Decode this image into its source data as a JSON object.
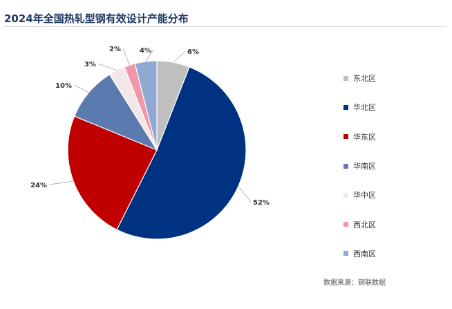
{
  "title": "2024年全国热轧型钢有效设计产能分布",
  "source": "数据来源：钢联数据",
  "chart_data": {
    "type": "pie",
    "title": "2024年全国热轧型钢有效设计产能分布",
    "legend_position": "right",
    "start_angle": "12 o'clock",
    "direction": "clockwise",
    "slices": [
      {
        "name": "东北区",
        "value": 6,
        "label": "6%",
        "color": "#bfbfbf"
      },
      {
        "name": "华北区",
        "value": 52,
        "label": "52%",
        "color": "#003282"
      },
      {
        "name": "华东区",
        "value": 24,
        "label": "24%",
        "color": "#c00000"
      },
      {
        "name": "华南区",
        "value": 10,
        "label": "10%",
        "color": "#5b7ab0"
      },
      {
        "name": "华中区",
        "value": 3,
        "label": "3%",
        "color": "#f2e6e8"
      },
      {
        "name": "西北区",
        "value": 2,
        "label": "2%",
        "color": "#ef97a8"
      },
      {
        "name": "西南区",
        "value": 4,
        "label": "4%",
        "color": "#8ea9d3"
      }
    ]
  }
}
